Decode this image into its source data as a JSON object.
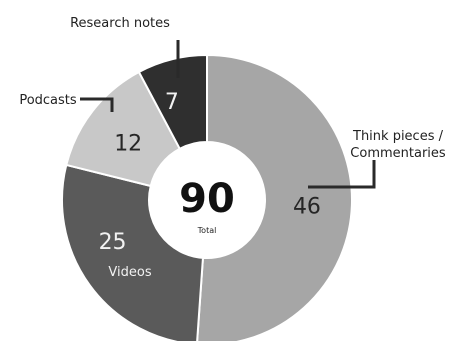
{
  "chart_data": {
    "type": "pie",
    "donut": true,
    "total": {
      "value": "90",
      "label": "Total"
    },
    "slices": [
      {
        "label": "Think pieces / Commentaries",
        "label_lines": [
          "Think pieces /",
          "Commentaries"
        ],
        "value": 46,
        "color": "#a6a6a6",
        "value_color": "#262626"
      },
      {
        "label": "Videos",
        "label_lines": [
          "Videos"
        ],
        "value": 25,
        "color": "#5a5a5a",
        "value_color": "#f2f2f2"
      },
      {
        "label": "Podcasts",
        "label_lines": [
          "Podcasts"
        ],
        "value": 12,
        "color": "#c8c8c8",
        "value_color": "#262626"
      },
      {
        "label": "Research notes",
        "label_lines": [
          "Research notes"
        ],
        "value": 7,
        "color": "#2f2f2f",
        "value_color": "#f2f2f2"
      }
    ],
    "start": "top",
    "direction": "clockwise"
  }
}
